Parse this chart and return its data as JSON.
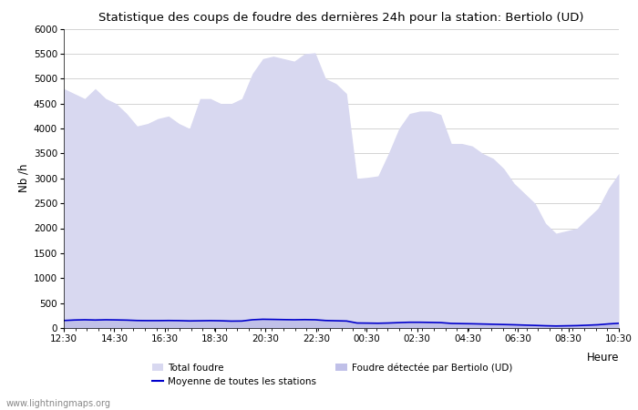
{
  "title": "Statistique des coups de foudre des dernières 24h pour la station: Bertiolo (UD)",
  "xlabel": "Heure",
  "ylabel": "Nb /h",
  "ylim": [
    0,
    6000
  ],
  "yticks": [
    0,
    500,
    1000,
    1500,
    2000,
    2500,
    3000,
    3500,
    4000,
    4500,
    5000,
    5500,
    6000
  ],
  "x_labels": [
    "12:30",
    "14:30",
    "16:30",
    "18:30",
    "20:30",
    "22:30",
    "00:30",
    "02:30",
    "04:30",
    "06:30",
    "08:30",
    "10:30"
  ],
  "watermark": "www.lightningmaps.org",
  "fill_color_total": "#d8d8f0",
  "fill_color_bertiolo": "#c0c0e8",
  "line_color": "#0000cc",
  "background_color": "#ffffff",
  "grid_color": "#cccccc",
  "total_foudre": [
    4800,
    4700,
    4600,
    4800,
    4600,
    4500,
    4300,
    4050,
    4100,
    4200,
    4250,
    4100,
    4000,
    4600,
    4600,
    4500,
    4500,
    4600,
    5100,
    5400,
    5450,
    5400,
    5350,
    5500,
    5520,
    5000,
    4900,
    4700,
    3000,
    3020,
    3050,
    3500,
    4000,
    4300,
    4350,
    4350,
    4280,
    3700,
    3700,
    3650,
    3500,
    3400,
    3200,
    2900,
    2700,
    2500,
    2100,
    1900,
    1950,
    2000,
    2200,
    2400,
    2800,
    3100
  ],
  "bertiolo": [
    150,
    160,
    165,
    160,
    165,
    162,
    158,
    150,
    148,
    148,
    150,
    148,
    142,
    145,
    148,
    145,
    138,
    140,
    165,
    175,
    172,
    168,
    165,
    168,
    165,
    150,
    145,
    140,
    100,
    98,
    95,
    100,
    108,
    115,
    115,
    112,
    108,
    92,
    88,
    85,
    80,
    75,
    70,
    65,
    58,
    52,
    45,
    40,
    44,
    48,
    56,
    65,
    82,
    95
  ],
  "moyenne": [
    150,
    160,
    165,
    160,
    165,
    162,
    158,
    150,
    148,
    148,
    150,
    148,
    142,
    145,
    148,
    145,
    138,
    140,
    165,
    175,
    172,
    168,
    165,
    168,
    165,
    150,
    145,
    140,
    100,
    98,
    95,
    100,
    108,
    115,
    115,
    112,
    108,
    92,
    88,
    85,
    80,
    75,
    70,
    65,
    58,
    52,
    45,
    40,
    44,
    48,
    56,
    65,
    82,
    95
  ]
}
